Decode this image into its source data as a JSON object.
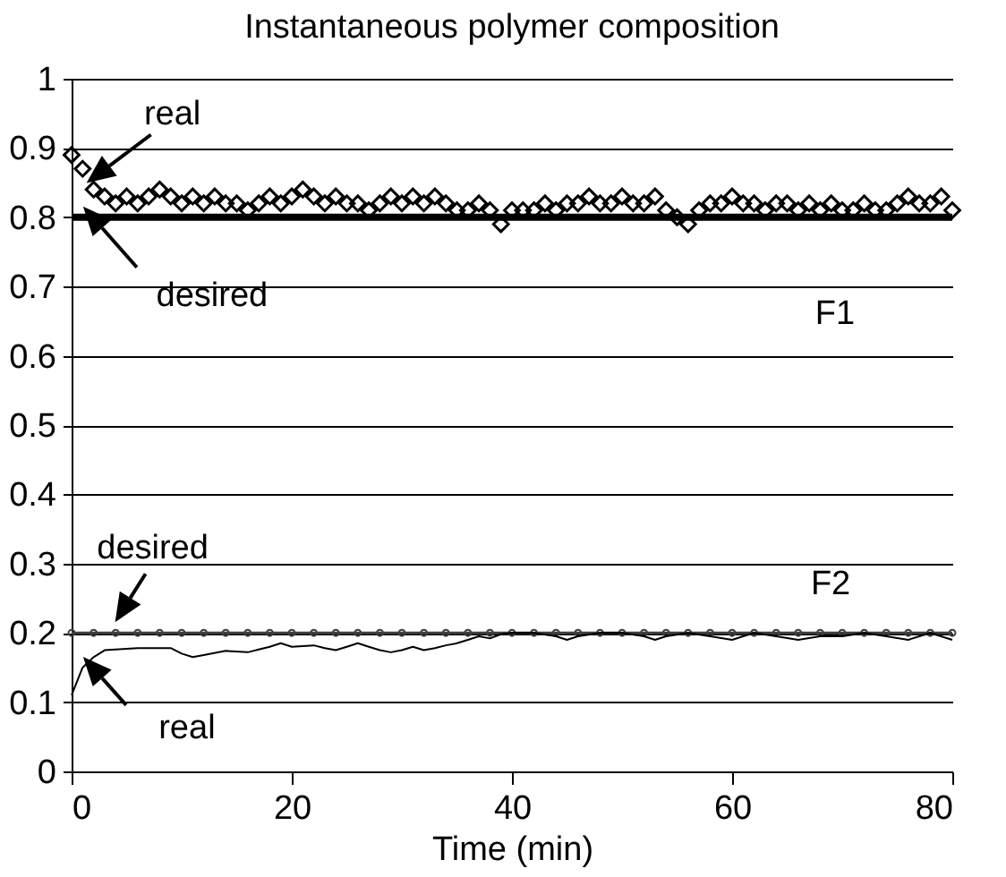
{
  "chart_data": {
    "type": "line",
    "title": "Instantaneous polymer composition",
    "xlabel": "Time (min)",
    "xlim": [
      0,
      80
    ],
    "xticks": [
      0,
      20,
      40,
      60,
      80
    ],
    "ylim": [
      0,
      1
    ],
    "yticks": [
      {
        "value": 0,
        "label": "0"
      },
      0.1,
      0.2,
      0.3,
      0.4,
      0.5,
      0.6,
      0.7,
      0.8,
      0.9,
      {
        "value": 1,
        "label": "1"
      }
    ],
    "grid": "y",
    "series": [
      {
        "type": "scatter",
        "marker": "diamond",
        "color": "#000000",
        "x": [
          0,
          1,
          2,
          3,
          4,
          5,
          6,
          7,
          8,
          9,
          10,
          11,
          12,
          13,
          14,
          15,
          16,
          17,
          18,
          19,
          20,
          21,
          22,
          23,
          24,
          25,
          26,
          27,
          28,
          29,
          30,
          31,
          32,
          33,
          34,
          35,
          36,
          37,
          38,
          39,
          40,
          41,
          42,
          43,
          44,
          45,
          46,
          47,
          48,
          49,
          50,
          51,
          52,
          53,
          54,
          55,
          56,
          57,
          58,
          59,
          60,
          61,
          62,
          63,
          64,
          65,
          66,
          67,
          68,
          69,
          70,
          71,
          72,
          73,
          74,
          75,
          76,
          77,
          78,
          79,
          80
        ],
        "values": [
          0.89,
          0.87,
          0.84,
          0.83,
          0.82,
          0.83,
          0.82,
          0.83,
          0.84,
          0.83,
          0.82,
          0.83,
          0.82,
          0.83,
          0.82,
          0.82,
          0.81,
          0.82,
          0.83,
          0.82,
          0.83,
          0.84,
          0.83,
          0.82,
          0.83,
          0.82,
          0.82,
          0.81,
          0.82,
          0.83,
          0.82,
          0.83,
          0.82,
          0.83,
          0.82,
          0.81,
          0.81,
          0.82,
          0.81,
          0.79,
          0.81,
          0.81,
          0.81,
          0.82,
          0.81,
          0.82,
          0.82,
          0.83,
          0.82,
          0.82,
          0.83,
          0.82,
          0.82,
          0.83,
          0.81,
          0.8,
          0.79,
          0.81,
          0.82,
          0.82,
          0.83,
          0.82,
          0.82,
          0.81,
          0.82,
          0.82,
          0.81,
          0.82,
          0.81,
          0.82,
          0.81,
          0.81,
          0.82,
          0.81,
          0.81,
          0.82,
          0.83,
          0.82,
          0.82,
          0.83,
          0.81
        ]
      },
      {
        "marker": "none",
        "color": "#000000",
        "x": [
          0,
          2,
          4,
          6,
          8,
          10,
          12,
          14,
          16,
          18,
          20,
          22,
          24,
          26,
          28,
          30,
          32,
          34,
          36,
          38,
          40,
          42,
          44,
          46,
          48,
          50,
          52,
          54,
          56,
          58,
          60,
          62,
          64,
          66,
          68,
          70,
          72,
          74,
          76,
          78,
          80
        ],
        "values": [
          0.8,
          0.8,
          0.8,
          0.8,
          0.8,
          0.8,
          0.8,
          0.8,
          0.8,
          0.8,
          0.8,
          0.8,
          0.8,
          0.8,
          0.8,
          0.8,
          0.8,
          0.8,
          0.8,
          0.8,
          0.8,
          0.8,
          0.8,
          0.8,
          0.8,
          0.8,
          0.8,
          0.8,
          0.8,
          0.8,
          0.8,
          0.8,
          0.8,
          0.8,
          0.8,
          0.8,
          0.8,
          0.8,
          0.8,
          0.8,
          0.8
        ]
      },
      {
        "marker": "circle",
        "color": "#404040",
        "x": [
          0,
          2,
          4,
          6,
          8,
          10,
          12,
          14,
          16,
          18,
          20,
          22,
          24,
          26,
          28,
          30,
          32,
          34,
          36,
          38,
          40,
          42,
          44,
          46,
          48,
          50,
          52,
          54,
          56,
          58,
          60,
          62,
          64,
          66,
          68,
          70,
          72,
          74,
          76,
          78,
          80
        ],
        "values": [
          0.2,
          0.2,
          0.2,
          0.2,
          0.2,
          0.2,
          0.2,
          0.2,
          0.2,
          0.2,
          0.2,
          0.2,
          0.2,
          0.2,
          0.2,
          0.2,
          0.2,
          0.2,
          0.2,
          0.2,
          0.2,
          0.2,
          0.2,
          0.2,
          0.2,
          0.2,
          0.2,
          0.2,
          0.2,
          0.2,
          0.2,
          0.2,
          0.2,
          0.2,
          0.2,
          0.2,
          0.2,
          0.2,
          0.2,
          0.2,
          0.2
        ]
      },
      {
        "marker": "none",
        "color": "#000000",
        "x": [
          0,
          1,
          2,
          3,
          6,
          9,
          10,
          11,
          12,
          14,
          16,
          17,
          18,
          19,
          20,
          22,
          23,
          24,
          25,
          26,
          27,
          28,
          29,
          30,
          31,
          32,
          33,
          34,
          35,
          36,
          37,
          38,
          39,
          40,
          42,
          44,
          45,
          46,
          48,
          50,
          52,
          53,
          54,
          56,
          58,
          60,
          61,
          62,
          64,
          66,
          68,
          70,
          72,
          74,
          76,
          78,
          80
        ],
        "values": [
          0.11,
          0.15,
          0.165,
          0.175,
          0.178,
          0.178,
          0.17,
          0.165,
          0.168,
          0.174,
          0.172,
          0.176,
          0.18,
          0.185,
          0.18,
          0.182,
          0.178,
          0.175,
          0.18,
          0.185,
          0.18,
          0.175,
          0.172,
          0.175,
          0.18,
          0.175,
          0.178,
          0.182,
          0.185,
          0.19,
          0.195,
          0.192,
          0.198,
          0.2,
          0.2,
          0.195,
          0.19,
          0.195,
          0.2,
          0.2,
          0.195,
          0.19,
          0.195,
          0.2,
          0.195,
          0.19,
          0.195,
          0.2,
          0.195,
          0.19,
          0.195,
          0.195,
          0.2,
          0.195,
          0.19,
          0.2,
          0.19
        ]
      }
    ],
    "annotations": [
      {
        "text": "real",
        "x": 2,
        "y": 0.834
      },
      {
        "text": "desired",
        "x": 1.7,
        "y": 0.8
      },
      {
        "text": "desired",
        "x": 4.6,
        "y": 0.2
      },
      {
        "text": "real",
        "x": 1.7,
        "y": 0.15
      },
      "F1",
      "F2"
    ]
  }
}
